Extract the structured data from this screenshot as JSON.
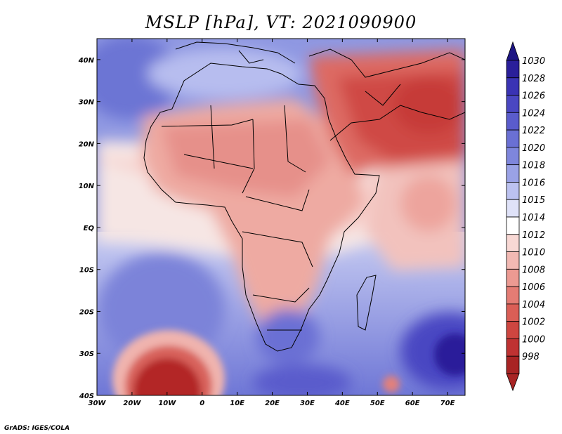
{
  "title": "MSLP [hPa], VT: 2021090900",
  "credit": "GrADS: IGES/COLA",
  "map": {
    "lon_range": [
      -30,
      75
    ],
    "lat_range": [
      -40,
      45
    ],
    "lat_ticks": [
      {
        "value": 40,
        "label": "40N"
      },
      {
        "value": 30,
        "label": "30N"
      },
      {
        "value": 20,
        "label": "20N"
      },
      {
        "value": 10,
        "label": "10N"
      },
      {
        "value": 0,
        "label": "EQ"
      },
      {
        "value": -10,
        "label": "10S"
      },
      {
        "value": -20,
        "label": "20S"
      },
      {
        "value": -30,
        "label": "30S"
      },
      {
        "value": -40,
        "label": "40S"
      }
    ],
    "lon_ticks": [
      {
        "value": -30,
        "label": "30W"
      },
      {
        "value": -20,
        "label": "20W"
      },
      {
        "value": -10,
        "label": "10W"
      },
      {
        "value": 0,
        "label": "0"
      },
      {
        "value": 10,
        "label": "10E"
      },
      {
        "value": 20,
        "label": "20E"
      },
      {
        "value": 30,
        "label": "30E"
      },
      {
        "value": 40,
        "label": "40E"
      },
      {
        "value": 50,
        "label": "50E"
      },
      {
        "value": 60,
        "label": "60E"
      },
      {
        "value": 70,
        "label": "70E"
      }
    ]
  },
  "colorbar": {
    "levels": [
      {
        "label": "1030",
        "color": "#2a1f9a"
      },
      {
        "label": "1028",
        "color": "#3a33b4"
      },
      {
        "label": "1026",
        "color": "#4a47c2"
      },
      {
        "label": "1024",
        "color": "#5a5ccc"
      },
      {
        "label": "1022",
        "color": "#6a70d4"
      },
      {
        "label": "1020",
        "color": "#7e86dc"
      },
      {
        "label": "1018",
        "color": "#9aa2e6"
      },
      {
        "label": "1016",
        "color": "#bcc2f0"
      },
      {
        "label": "1015",
        "color": "#dfe2f8"
      },
      {
        "label": "1014",
        "color": "#ffffff"
      },
      {
        "label": "1012",
        "color": "#f8d8d4"
      },
      {
        "label": "1010",
        "color": "#f2b9b3"
      },
      {
        "label": "1008",
        "color": "#ec9a92"
      },
      {
        "label": "1006",
        "color": "#e47c74"
      },
      {
        "label": "1004",
        "color": "#da5e56"
      },
      {
        "label": "1002",
        "color": "#ce4640"
      },
      {
        "label": "1000",
        "color": "#bf3232"
      },
      {
        "label": "998",
        "color": "#a82424"
      }
    ],
    "top_color": "#1e1684",
    "bottom_color": "#a82424"
  },
  "colors": {
    "ocean_north": "#8f98e2",
    "ocean_south": "#8890df",
    "tropical_belt": "#f6d6d2",
    "land_low": "#eea59e",
    "arabia_low": "#d24e48",
    "atlantic_low": "#b32828",
    "high_core": "#3e3cb8"
  }
}
